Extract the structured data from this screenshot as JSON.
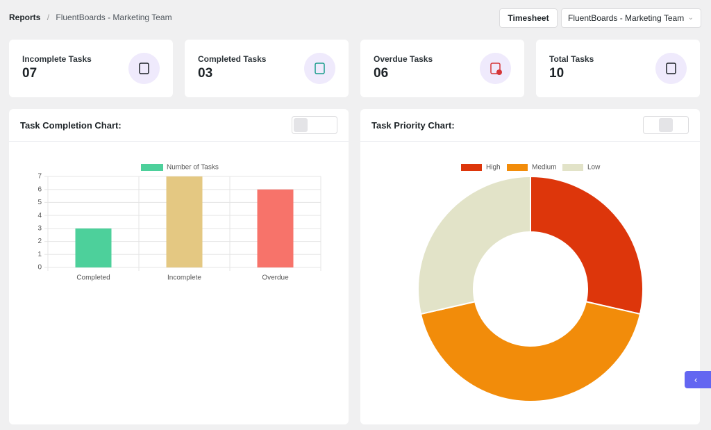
{
  "header": {
    "breadcrumb": [
      "Reports",
      "FluentBoards - Marketing Team"
    ],
    "timesheet": "Timesheet",
    "board_select": "FluentBoards - Marketing Team"
  },
  "cards": [
    {
      "label": "Incomplete Tasks",
      "value": "07"
    },
    {
      "label": "Completed Tasks",
      "value": "03"
    },
    {
      "label": "Overdue Tasks",
      "value": "06"
    },
    {
      "label": "Total Tasks",
      "value": "10"
    }
  ],
  "chart_data": [
    {
      "type": "bar",
      "title": "Task Completion Chart:",
      "categories": [
        "Completed",
        "Incomplete",
        "Overdue"
      ],
      "series": [
        {
          "name": "Number of Tasks",
          "colors": [
            "#4dd09b",
            "#e4c882",
            "#f7736a"
          ],
          "values": [
            3,
            7,
            6
          ]
        }
      ],
      "ylim": [
        0,
        7
      ],
      "yticks": [
        0,
        1,
        2,
        3,
        4,
        5,
        6,
        7
      ],
      "grid": true
    },
    {
      "type": "doughnut",
      "title": "Task Priority Chart:",
      "categories": [
        "High",
        "Medium",
        "Low"
      ],
      "values": [
        2,
        3,
        2
      ],
      "colors": [
        "#dd360b",
        "#f28c0a",
        "#e2e3c8"
      ]
    }
  ]
}
